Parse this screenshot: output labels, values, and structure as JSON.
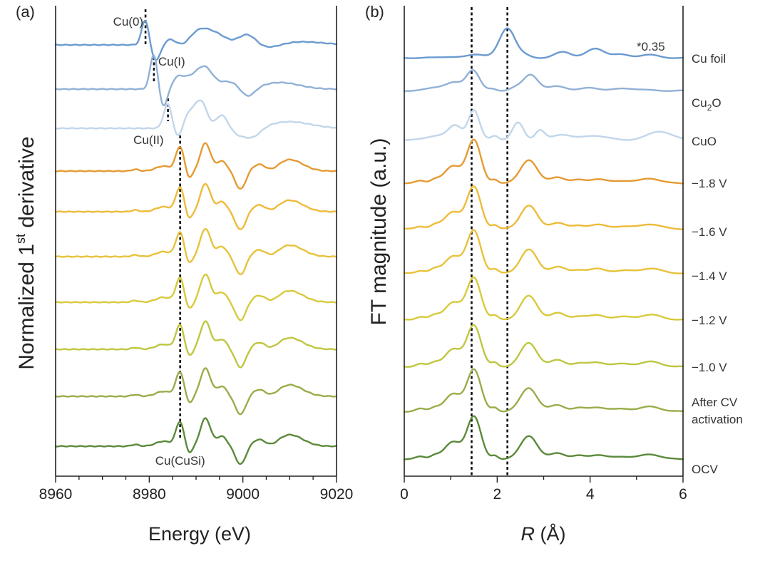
{
  "chart_data": [
    {
      "panel": "(a)",
      "type": "line",
      "xlabel": "Energy (eV)",
      "ylabel_parts": [
        "Normalized 1",
        "st",
        " derivative"
      ],
      "xlim": [
        8960,
        9020
      ],
      "xticks": [
        8960,
        8980,
        9000,
        9020
      ],
      "yticks_shown": false,
      "series_order": [
        "Cu foil",
        "Cu2O",
        "CuO",
        "-1.8 V",
        "-1.6 V",
        "-1.4 V",
        "-1.2 V",
        "-1.0 V",
        "After CV activation",
        "OCV"
      ],
      "annotations": [
        {
          "text": "Cu(0)",
          "x": 8979.2
        },
        {
          "text": "Cu(I)",
          "x": 8981.0
        },
        {
          "text": "Cu(II)",
          "x": 8984.0
        },
        {
          "text": "Cu(CuSi)",
          "x": 8986.6
        }
      ],
      "reference_lines_ev": [
        8979.2,
        8981.0,
        8984.0,
        8986.6
      ]
    },
    {
      "panel": "(b)",
      "type": "line",
      "xlabel_italic": "R",
      "xlabel_rest": " (Å)",
      "ylabel": "FT magnitude (a.u.)",
      "xlim": [
        0,
        6
      ],
      "xticks": [
        0,
        2,
        4,
        6
      ],
      "yticks_shown": false,
      "reference_lines_angstrom": [
        1.45,
        2.22
      ],
      "scale_note": "*0.35",
      "series_labels": [
        {
          "lines": [
            "Cu foil"
          ]
        },
        {
          "lines": [
            "Cu",
            "2",
            "O"
          ],
          "subscript": true
        },
        {
          "lines": [
            "CuO"
          ]
        },
        {
          "lines": [
            "−1.8 V"
          ]
        },
        {
          "lines": [
            "−1.6 V"
          ]
        },
        {
          "lines": [
            "−1.4 V"
          ]
        },
        {
          "lines": [
            "−1.2 V"
          ]
        },
        {
          "lines": [
            "−1.0 V"
          ]
        },
        {
          "lines": [
            "After CV",
            "activation"
          ]
        },
        {
          "lines": [
            "OCV"
          ]
        }
      ]
    }
  ],
  "colors": [
    "#6b9bd0",
    "#91b1d6",
    "#c2d6ea",
    "#e59a33",
    "#eebb3a",
    "#e8c23a",
    "#d7ca3c",
    "#bfc640",
    "#98ad4a",
    "#5b8a3a"
  ]
}
